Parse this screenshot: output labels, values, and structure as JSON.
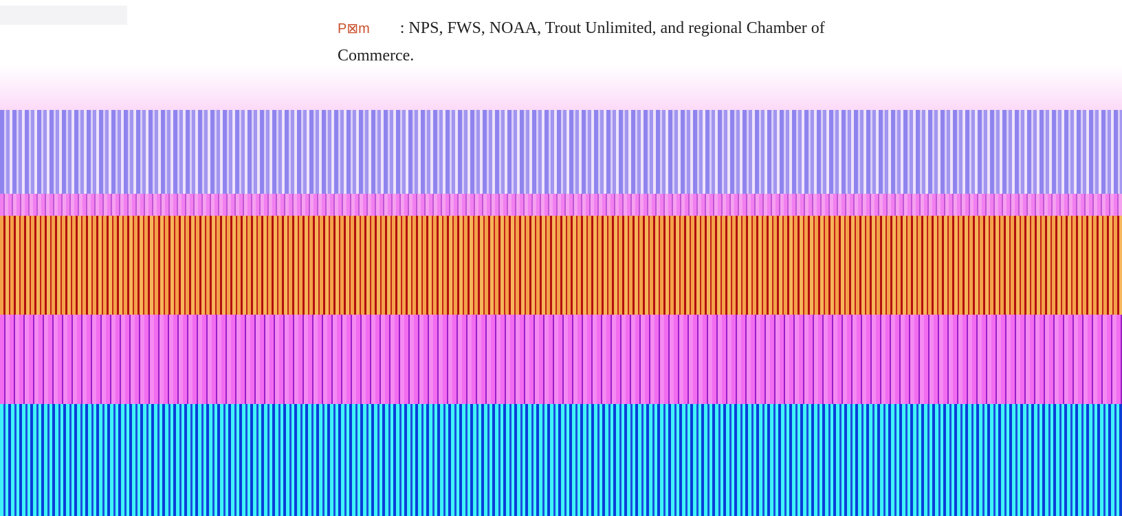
{
  "content": {
    "label": "P⊠m",
    "text": ": NPS, FWS, NOAA, Trout Unlimited, and regional Chamber of Commerce."
  }
}
